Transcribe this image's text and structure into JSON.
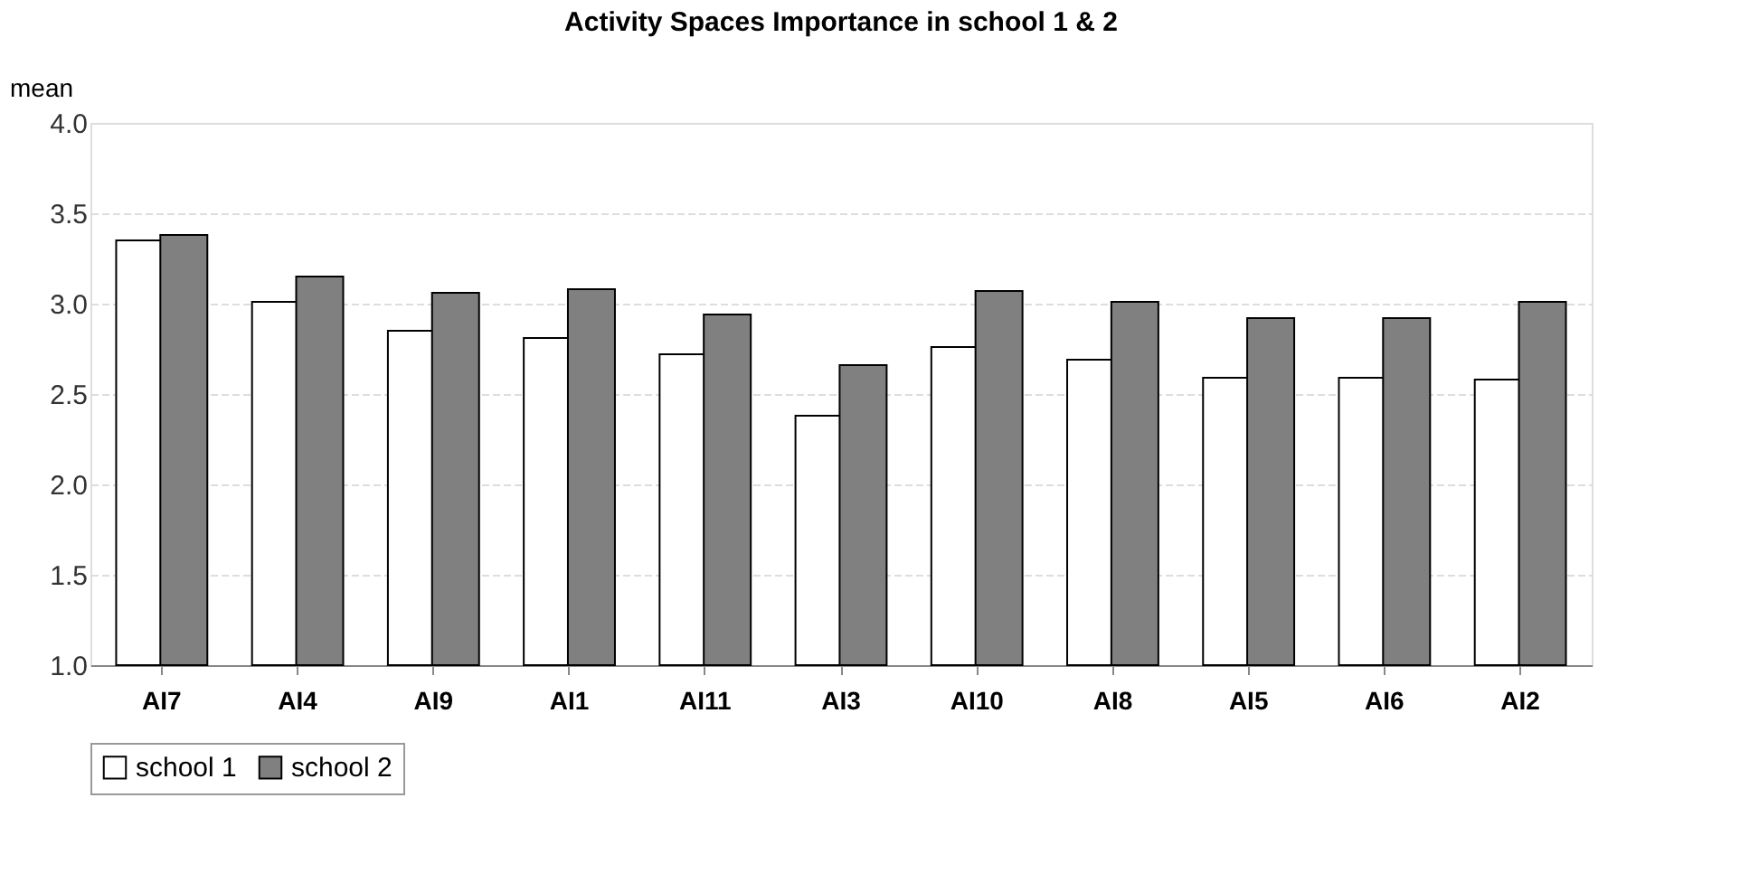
{
  "chart_data": {
    "type": "bar",
    "title": "Activity Spaces Importance in school 1 & 2",
    "ylabel": "mean",
    "categories": [
      "AI7",
      "AI4",
      "AI9",
      "AI1",
      "AI11",
      "AI3",
      "AI10",
      "AI8",
      "AI5",
      "AI6",
      "AI2"
    ],
    "series": [
      {
        "name": "school 1",
        "color": "#ffffff",
        "values": [
          3.35,
          3.01,
          2.85,
          2.81,
          2.72,
          2.38,
          2.76,
          2.69,
          2.59,
          2.59,
          2.58
        ]
      },
      {
        "name": "school 2",
        "color": "#808080",
        "values": [
          3.38,
          3.15,
          3.06,
          3.08,
          2.94,
          2.66,
          3.07,
          3.01,
          2.92,
          2.92,
          3.01
        ]
      }
    ],
    "ylim": [
      1.0,
      4.0
    ],
    "yticks": [
      {
        "value": 1.0,
        "label": "1.0"
      },
      {
        "value": 1.5,
        "label": "1.5"
      },
      {
        "value": 2.0,
        "label": "2.0"
      },
      {
        "value": 2.5,
        "label": "2.5"
      },
      {
        "value": 3.0,
        "label": "3.0"
      },
      {
        "value": 3.5,
        "label": "3.5"
      },
      {
        "value": 4.0,
        "label": "4.0"
      }
    ],
    "grid": "y",
    "legend": "bottom"
  }
}
